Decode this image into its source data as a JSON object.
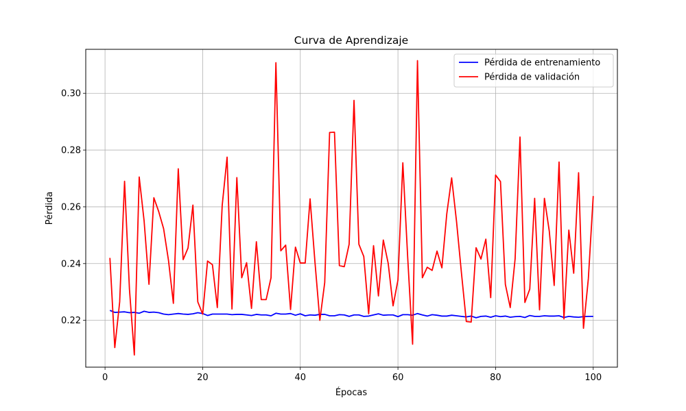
{
  "chart_data": {
    "type": "line",
    "title": "Curva de Aprendizaje",
    "xlabel": "Épocas",
    "ylabel": "Pérdida",
    "xlim": [
      -3.95,
      104.95
    ],
    "ylim": [
      0.2035,
      0.3155
    ],
    "xticks": [
      0,
      20,
      40,
      60,
      80,
      100
    ],
    "yticks": [
      0.22,
      0.24,
      0.26,
      0.28,
      0.3
    ],
    "ytick_labels": [
      "0.22",
      "0.24",
      "0.26",
      "0.28",
      "0.30"
    ],
    "grid": true,
    "legend_position": "top-right",
    "x": [
      1,
      2,
      3,
      4,
      5,
      6,
      7,
      8,
      9,
      10,
      11,
      12,
      13,
      14,
      15,
      16,
      17,
      18,
      19,
      20,
      21,
      22,
      23,
      24,
      25,
      26,
      27,
      28,
      29,
      30,
      31,
      32,
      33,
      34,
      35,
      36,
      37,
      38,
      39,
      40,
      41,
      42,
      43,
      44,
      45,
      46,
      47,
      48,
      49,
      50,
      51,
      52,
      53,
      54,
      55,
      56,
      57,
      58,
      59,
      60,
      61,
      62,
      63,
      64,
      65,
      66,
      67,
      68,
      69,
      70,
      71,
      72,
      73,
      74,
      75,
      76,
      77,
      78,
      79,
      80,
      81,
      82,
      83,
      84,
      85,
      86,
      87,
      88,
      89,
      90,
      91,
      92,
      93,
      94,
      95,
      96,
      97,
      98,
      99,
      100
    ],
    "series": [
      {
        "name": "Pérdida de entrenamiento",
        "color": "#0000ff",
        "values": [
          0.2235,
          0.2228,
          0.2229,
          0.223,
          0.2227,
          0.2228,
          0.2225,
          0.2232,
          0.2228,
          0.2229,
          0.2227,
          0.2222,
          0.222,
          0.2222,
          0.2224,
          0.2222,
          0.2221,
          0.2223,
          0.2227,
          0.2224,
          0.2217,
          0.2222,
          0.2222,
          0.2222,
          0.2222,
          0.222,
          0.2221,
          0.2221,
          0.2219,
          0.2217,
          0.2221,
          0.2219,
          0.2219,
          0.2216,
          0.2225,
          0.2222,
          0.2222,
          0.2224,
          0.2218,
          0.2223,
          0.2216,
          0.2219,
          0.2218,
          0.2221,
          0.2221,
          0.2216,
          0.2216,
          0.222,
          0.2219,
          0.2214,
          0.2219,
          0.2219,
          0.2214,
          0.2215,
          0.2219,
          0.2223,
          0.2218,
          0.2219,
          0.2219,
          0.2213,
          0.222,
          0.222,
          0.2218,
          0.2224,
          0.2219,
          0.2215,
          0.222,
          0.2218,
          0.2215,
          0.2215,
          0.2218,
          0.2216,
          0.2214,
          0.2212,
          0.2215,
          0.2209,
          0.2214,
          0.2215,
          0.2211,
          0.2216,
          0.2213,
          0.2215,
          0.2211,
          0.2213,
          0.2214,
          0.221,
          0.2217,
          0.2214,
          0.2214,
          0.2216,
          0.2215,
          0.2215,
          0.2216,
          0.221,
          0.2214,
          0.2212,
          0.2211,
          0.2213,
          0.2214,
          0.2214
        ]
      },
      {
        "name": "Pérdida de validación",
        "color": "#ff0000",
        "values": [
          0.242,
          0.2104,
          0.2265,
          0.269,
          0.231,
          0.2078,
          0.2705,
          0.2551,
          0.2327,
          0.2632,
          0.2583,
          0.2523,
          0.2411,
          0.226,
          0.2734,
          0.2414,
          0.2455,
          0.2606,
          0.2265,
          0.2222,
          0.2409,
          0.2396,
          0.2245,
          0.2605,
          0.2775,
          0.224,
          0.2703,
          0.235,
          0.2403,
          0.2242,
          0.2477,
          0.2273,
          0.2273,
          0.235,
          0.3108,
          0.2445,
          0.2465,
          0.2238,
          0.2458,
          0.2402,
          0.2402,
          0.2628,
          0.2405,
          0.22,
          0.2333,
          0.2862,
          0.2863,
          0.2393,
          0.2389,
          0.2468,
          0.2975,
          0.2468,
          0.2425,
          0.2223,
          0.2463,
          0.2286,
          0.2483,
          0.2401,
          0.2251,
          0.2342,
          0.2755,
          0.242,
          0.2116,
          0.3115,
          0.235,
          0.2387,
          0.2376,
          0.2444,
          0.2385,
          0.2575,
          0.2702,
          0.2548,
          0.2368,
          0.2196,
          0.2194,
          0.2456,
          0.2416,
          0.2486,
          0.228,
          0.2712,
          0.2689,
          0.2327,
          0.2245,
          0.2417,
          0.2846,
          0.2263,
          0.231,
          0.263,
          0.2237,
          0.263,
          0.2514,
          0.2323,
          0.2758,
          0.2205,
          0.2518,
          0.2366,
          0.272,
          0.2172,
          0.2347,
          0.2638
        ]
      }
    ]
  }
}
